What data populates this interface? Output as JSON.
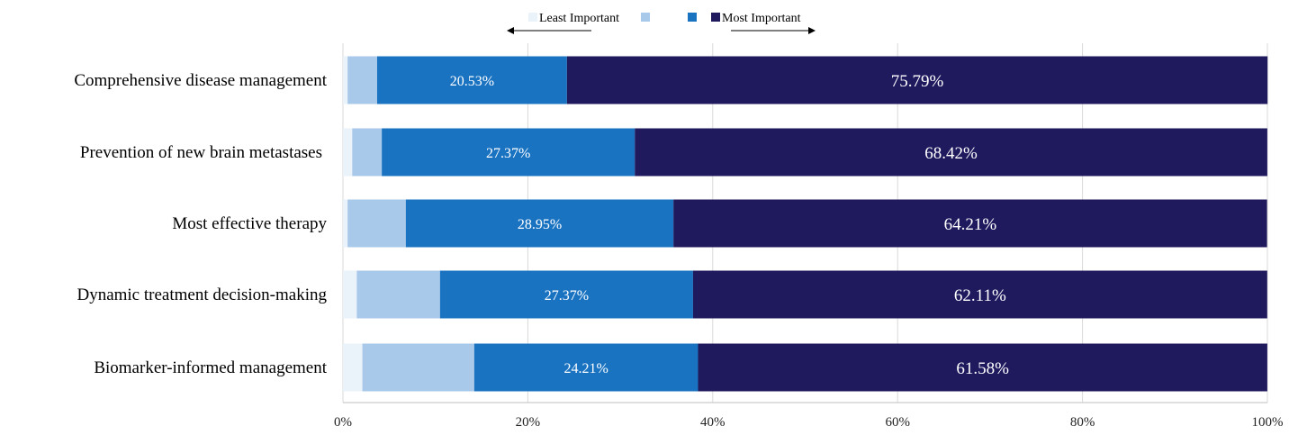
{
  "chart_data": {
    "type": "bar",
    "orientation": "horizontal",
    "stacked": true,
    "categories": [
      "Comprehensive disease management",
      "Prevention of new brain metastases",
      "Most effective therapy",
      "Dynamic treatment decision-making",
      "Biomarker-informed management"
    ],
    "series": [
      {
        "name": "Least Important",
        "color": "#eaf2fa",
        "values": [
          0.5,
          1.0,
          0.5,
          1.5,
          2.1
        ]
      },
      {
        "name": "",
        "color": "#a9c9ea",
        "values": [
          3.2,
          3.2,
          6.3,
          9.0,
          12.1
        ]
      },
      {
        "name": "",
        "color": "#1a73c1",
        "values": [
          20.53,
          27.37,
          28.95,
          27.37,
          24.21
        ]
      },
      {
        "name": "Most Important",
        "color": "#1f1a5e",
        "values": [
          75.79,
          68.42,
          64.21,
          62.11,
          61.58
        ]
      }
    ],
    "data_labels": [
      [
        "20.53%",
        "75.79%"
      ],
      [
        "27.37%",
        "68.42%"
      ],
      [
        "28.95%",
        "64.21%"
      ],
      [
        "27.37%",
        "62.11%"
      ],
      [
        "24.21%",
        "61.58%"
      ]
    ],
    "xlim": [
      0,
      100
    ],
    "xticks": [
      0,
      20,
      40,
      60,
      80,
      100
    ],
    "xtick_labels": [
      "0%",
      "20%",
      "40%",
      "60%",
      "80%",
      "100%"
    ],
    "grid": true,
    "legend_position": "top"
  }
}
